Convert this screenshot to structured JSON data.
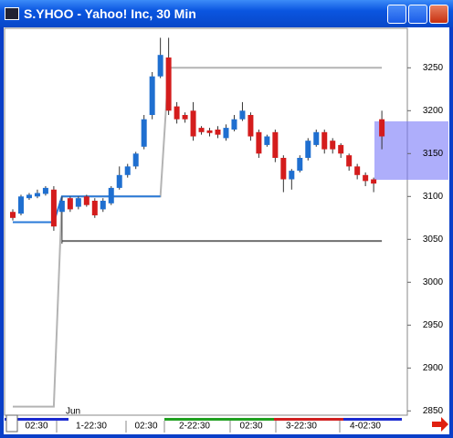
{
  "window": {
    "title": "S.YHOO - Yahoo! Inc, 30 Min"
  },
  "chart_data": {
    "type": "candlestick",
    "up_color": "#1f6fd0",
    "down_color": "#d41c1c",
    "open": [
      3082,
      3080,
      3098,
      3100,
      3103,
      3108,
      3082,
      3098,
      3088,
      3100,
      3095,
      3085,
      3092,
      3110,
      3125,
      3135,
      3158,
      3195,
      3240,
      3262,
      3205,
      3195,
      3200,
      3180,
      3177,
      3178,
      3168,
      3178,
      3190,
      3195,
      3175,
      3160,
      3175,
      3145,
      3120,
      3130,
      3145,
      3160,
      3175,
      3165,
      3160,
      3148,
      3135,
      3125,
      3120,
      3190
    ],
    "high": [
      3085,
      3102,
      3104,
      3108,
      3112,
      3112,
      3100,
      3100,
      3100,
      3102,
      3098,
      3098,
      3112,
      3135,
      3138,
      3152,
      3195,
      3245,
      3285,
      3285,
      3210,
      3198,
      3210,
      3182,
      3180,
      3182,
      3184,
      3195,
      3210,
      3198,
      3178,
      3172,
      3178,
      3148,
      3132,
      3148,
      3168,
      3178,
      3178,
      3168,
      3162,
      3150,
      3138,
      3128,
      3122,
      3200
    ],
    "low": [
      3072,
      3078,
      3096,
      3098,
      3101,
      3060,
      3045,
      3082,
      3085,
      3088,
      3075,
      3082,
      3090,
      3108,
      3122,
      3132,
      3155,
      3190,
      3238,
      3195,
      3185,
      3186,
      3165,
      3172,
      3170,
      3168,
      3165,
      3176,
      3188,
      3165,
      3145,
      3158,
      3140,
      3105,
      3108,
      3128,
      3142,
      3158,
      3150,
      3150,
      3145,
      3130,
      3120,
      3112,
      3105,
      3155
    ],
    "close": [
      3075,
      3100,
      3102,
      3104,
      3110,
      3065,
      3095,
      3085,
      3098,
      3090,
      3078,
      3095,
      3110,
      3125,
      3135,
      3150,
      3190,
      3240,
      3265,
      3200,
      3190,
      3190,
      3170,
      3175,
      3174,
      3172,
      3180,
      3190,
      3200,
      3170,
      3150,
      3170,
      3145,
      3120,
      3130,
      3145,
      3165,
      3175,
      3155,
      3155,
      3150,
      3135,
      3125,
      3118,
      3115,
      3170
    ],
    "lines": [
      {
        "color": "#b4b4b4",
        "values": [
          2855,
          2855,
          2855,
          2855,
          2855,
          2855,
          3100,
          3100,
          3100,
          3100,
          3100,
          3100,
          3100,
          3100,
          3100,
          3100,
          3100,
          3100,
          3100,
          3250,
          3250,
          3250,
          3250,
          3250,
          3250,
          3250,
          3250,
          3250,
          3250,
          3250,
          3250,
          3250,
          3250,
          3250,
          3250,
          3250,
          3250,
          3250,
          3250,
          3250,
          3250,
          3250,
          3250,
          3250,
          3250,
          3250
        ]
      },
      {
        "color": "#2a7ad8",
        "values": [
          3070,
          3070,
          3070,
          3070,
          3070,
          3070,
          3100,
          3100,
          3100,
          3100,
          3100,
          3100,
          3100,
          3100,
          3100,
          3100,
          3100,
          3100,
          3100,
          null,
          null,
          null,
          null,
          null,
          null,
          null,
          null,
          null,
          null,
          null,
          null,
          null,
          null,
          null,
          null,
          null,
          null,
          null,
          null,
          null,
          null,
          null,
          null,
          null,
          null,
          null
        ]
      },
      {
        "color": "#707070",
        "values": [
          null,
          null,
          null,
          null,
          null,
          null,
          3048,
          3048,
          3048,
          3048,
          3048,
          3048,
          3048,
          3048,
          3048,
          3048,
          3048,
          3048,
          3048,
          3048,
          3048,
          3048,
          3048,
          3048,
          3048,
          3048,
          3048,
          3048,
          3048,
          3048,
          3048,
          3048,
          3048,
          3048,
          3048,
          3048,
          3048,
          3048,
          3048,
          3048,
          3048,
          3048,
          3048,
          3048,
          3048,
          3048
        ]
      }
    ],
    "ylim": [
      2845,
      3295
    ],
    "yticks": [
      2850,
      2900,
      2950,
      3000,
      3050,
      3100,
      3150,
      3200,
      3250
    ],
    "month_label": "Jun",
    "xlabels": [
      "02:30",
      "1-22:30",
      "02:30",
      "2-22:30",
      "02:30",
      "3-22:30",
      "4-02:30"
    ]
  }
}
